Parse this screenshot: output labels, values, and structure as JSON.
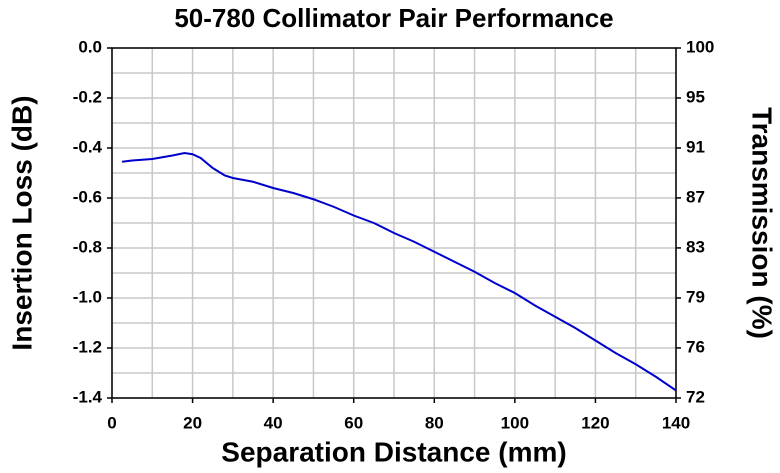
{
  "chart_data": {
    "type": "line",
    "title": "50-780 Collimator Pair Performance",
    "x_label": "Separation Distance (mm)",
    "y_label": "Insertion Loss (dB)",
    "y2_label": "Transmission (%)",
    "x": [
      2.5,
      5,
      10,
      15,
      18,
      20,
      22,
      25,
      28,
      30,
      35,
      40,
      45,
      50,
      55,
      60,
      65,
      70,
      75,
      80,
      85,
      90,
      95,
      100,
      105,
      110,
      115,
      120,
      125,
      130,
      135,
      140
    ],
    "series": [
      {
        "name": "Insertion Loss",
        "color": "#0000cc",
        "values": [
          -0.455,
          -0.45,
          -0.444,
          -0.43,
          -0.42,
          -0.425,
          -0.44,
          -0.48,
          -0.51,
          -0.52,
          -0.535,
          -0.56,
          -0.58,
          -0.605,
          -0.635,
          -0.67,
          -0.7,
          -0.74,
          -0.775,
          -0.815,
          -0.855,
          -0.895,
          -0.94,
          -0.98,
          -1.03,
          -1.075,
          -1.12,
          -1.17,
          -1.22,
          -1.265,
          -1.315,
          -1.37
        ]
      }
    ],
    "xlim": [
      0,
      140
    ],
    "xticks": [
      0,
      20,
      40,
      60,
      80,
      100,
      120,
      140
    ],
    "xminor_ticks": [
      10,
      30,
      50,
      70,
      90,
      110,
      130
    ],
    "ylim": [
      -1.4,
      0
    ],
    "yticks": [
      {
        "value": -1.4,
        "label": "-1.4"
      },
      {
        "value": -1.2,
        "label": "-1.2"
      },
      {
        "value": -1.0,
        "label": "-1.0"
      },
      {
        "value": -0.8,
        "label": "-0.8"
      },
      {
        "value": -0.6,
        "label": "-0.6"
      },
      {
        "value": -0.4,
        "label": "-0.4"
      },
      {
        "value": -0.2,
        "label": "-0.2"
      },
      {
        "value": 0,
        "label": "0.0"
      }
    ],
    "yminor_ticks": [
      -1.3,
      -1.1,
      -0.9,
      -0.7,
      -0.5,
      -0.3,
      -0.1
    ],
    "y2scale": "log",
    "y2lim": [
      72.44,
      100
    ],
    "y2ticks": [
      {
        "value": 72.44,
        "label": "72"
      },
      {
        "value": 75.86,
        "label": "76"
      },
      {
        "value": 79.43,
        "label": "79"
      },
      {
        "value": 83.18,
        "label": "83"
      },
      {
        "value": 87.1,
        "label": "87"
      },
      {
        "value": 91.2,
        "label": "91"
      },
      {
        "value": 95.5,
        "label": "95"
      },
      {
        "value": 100,
        "label": "100"
      }
    ],
    "grid": true
  }
}
